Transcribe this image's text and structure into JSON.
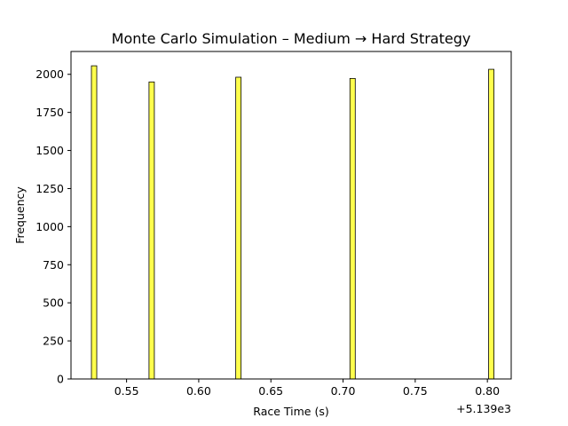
{
  "chart_data": {
    "type": "bar",
    "title": "Monte Carlo Simulation – Medium → Hard Strategy",
    "xlabel": "Race Time (s)",
    "ylabel": "Frequency",
    "x_offset_label": "+5.139e3",
    "xlim": [
      0.5115,
      0.8165
    ],
    "ylim": [
      0,
      2150
    ],
    "x_ticks": [
      0.55,
      0.6,
      0.65,
      0.7,
      0.75,
      0.8
    ],
    "x_tick_labels": [
      "0.55",
      "0.60",
      "0.65",
      "0.70",
      "0.75",
      "0.80"
    ],
    "y_ticks": [
      0,
      250,
      500,
      750,
      1000,
      1250,
      1500,
      1750,
      2000
    ],
    "y_tick_labels": [
      "0",
      "250",
      "500",
      "750",
      "1000",
      "1250",
      "1500",
      "1750",
      "2000"
    ],
    "bin_width": 0.0037,
    "x": [
      0.5275,
      0.5674,
      0.6275,
      0.7066,
      0.8027
    ],
    "values": [
      2056,
      1950,
      1981,
      1973,
      2033
    ],
    "grid": false,
    "bar_color": "#ffff4d",
    "bar_edge_color": "#000000"
  }
}
